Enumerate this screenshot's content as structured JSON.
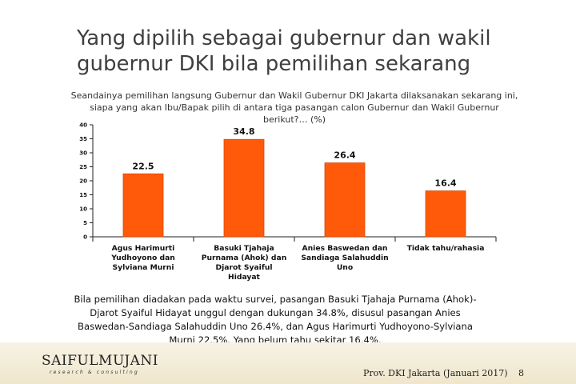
{
  "slide": {
    "title": "Yang dipilih sebagai gubernur dan wakil gubernur DKI bila pemilihan sekarang",
    "question": "Seandainya pemilihan langsung Gubernur dan Wakil Gubernur DKI Jakarta dilaksanakan sekarang ini, siapa yang akan Ibu/Bapak pilih di antara tiga pasangan calon Gubernur dan Wakil Gubernur berikut?… (%)",
    "summary": "Bila pemilihan diadakan pada waktu survei, pasangan Basuki Tjahaja Purnama (Ahok)-Djarot Syaiful Hidayat unggul dengan dukungan 34.8%, disusul pasangan Anies Baswedan-Sandiaga Salahuddin Uno 26.4%, dan Agus Harimurti Yudhoyono-Sylviana Murni 22.5%. Yang belum tahu sekitar 16.4%."
  },
  "footer": {
    "logo_main": "SAIFULMUJANI",
    "logo_sub": "research & consulting",
    "source": "Prov. DKI Jakarta (Januari 2017)",
    "page_number": "8"
  },
  "colors": {
    "bar": "#ff5a0a",
    "bar_stroke": "#d9480a",
    "axis": "#222222",
    "text": "#111111"
  },
  "chart_data": {
    "type": "bar",
    "categories": [
      [
        "Agus Harimurti",
        "Yudhoyono dan",
        "Sylviana Murni"
      ],
      [
        "Basuki Tjahaja",
        "Purnama (Ahok) dan",
        "Djarot Syaiful",
        "Hidayat"
      ],
      [
        "Anies Baswedan dan",
        "Sandiaga Salahuddin",
        "Uno"
      ],
      [
        "Tidak tahu/rahasia"
      ]
    ],
    "values": [
      22.5,
      34.8,
      26.4,
      16.4
    ],
    "value_labels": [
      "22.5",
      "34.8",
      "26.4",
      "16.4"
    ],
    "ylim": [
      0,
      40
    ],
    "yticks": [
      0,
      5,
      10,
      15,
      20,
      25,
      30,
      35,
      40
    ],
    "grid": false,
    "legend": "none"
  }
}
